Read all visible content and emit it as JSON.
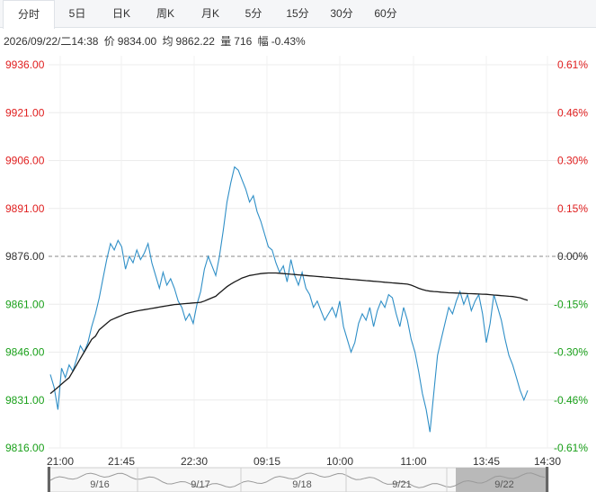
{
  "tabs": [
    {
      "label": "分时",
      "active": true
    },
    {
      "label": "5日"
    },
    {
      "label": "日K"
    },
    {
      "label": "周K"
    },
    {
      "label": "月K"
    },
    {
      "label": "5分"
    },
    {
      "label": "15分"
    },
    {
      "label": "30分"
    },
    {
      "label": "60分"
    }
  ],
  "info": {
    "datetime": "2026/09/22/二14:38",
    "price_label": "价",
    "price": "9834.00",
    "avg_label": "均",
    "avg": "9862.22",
    "vol_label": "量",
    "vol": "716",
    "chg_label": "幅",
    "chg": "-0.43%"
  },
  "chart_data": {
    "type": "line",
    "y_left_ticks": [
      "9936.00",
      "9921.00",
      "9906.00",
      "9891.00",
      "9876.00",
      "9861.00",
      "9846.00",
      "9831.00",
      "9816.00"
    ],
    "y_right_ticks": [
      "0.61%",
      "0.46%",
      "0.30%",
      "0.15%",
      "0.00%",
      "-0.15%",
      "-0.30%",
      "-0.46%",
      "-0.61%"
    ],
    "ylim": [
      9816,
      9936
    ],
    "reference_price": 9876,
    "x_ticks": [
      "21:00",
      "21:45",
      "22:30",
      "09:15",
      "10:00",
      "11:00",
      "13:45",
      "14:30"
    ],
    "navigator_labels": [
      "9/16",
      "9/17",
      "9/18",
      "9/21",
      "9/22"
    ],
    "colors": {
      "price": "#2f8fc7",
      "average": "#1a1a1a",
      "up": "#e02020",
      "down": "#1aa01a",
      "reference": "#888888"
    },
    "series": [
      {
        "key": "price",
        "values": [
          9839,
          9835,
          9828,
          9841,
          9838,
          9842,
          9840,
          9844,
          9848,
          9846,
          9849,
          9854,
          9858,
          9863,
          9869,
          9875,
          9880,
          9878,
          9881,
          9879,
          9872,
          9876,
          9874,
          9878,
          9875,
          9877,
          9880,
          9874,
          9870,
          9866,
          9871,
          9867,
          9869,
          9866,
          9862,
          9860,
          9856,
          9858,
          9855,
          9861,
          9865,
          9872,
          9876,
          9873,
          9870,
          9876,
          9884,
          9893,
          9899,
          9904,
          9903,
          9900,
          9897,
          9893,
          9895,
          9890,
          9887,
          9883,
          9879,
          9878,
          9874,
          9871,
          9873,
          9868,
          9875,
          9870,
          9867,
          9871,
          9866,
          9864,
          9860,
          9862,
          9859,
          9856,
          9858,
          9860,
          9857,
          9862,
          9854,
          9850,
          9846,
          9849,
          9855,
          9858,
          9856,
          9860,
          9854,
          9859,
          9862,
          9860,
          9864,
          9863,
          9858,
          9854,
          9860,
          9856,
          9850,
          9846,
          9840,
          9833,
          9828,
          9821,
          9833,
          9845,
          9850,
          9855,
          9860,
          9858,
          9862,
          9865,
          9861,
          9864,
          9859,
          9862,
          9864,
          9858,
          9849,
          9855,
          9864,
          9860,
          9856,
          9850,
          9845,
          9842,
          9838,
          9834,
          9831,
          9834
        ]
      },
      {
        "key": "average",
        "values": [
          9833,
          9834,
          9835,
          9836,
          9837,
          9838,
          9840,
          9842,
          9844,
          9846,
          9848,
          9850,
          9851,
          9853,
          9854,
          9855,
          9856,
          9856.5,
          9857,
          9857.5,
          9858,
          9858.3,
          9858.6,
          9858.9,
          9859.1,
          9859.3,
          9859.5,
          9859.7,
          9859.9,
          9860.1,
          9860.3,
          9860.5,
          9860.7,
          9860.9,
          9861,
          9861.1,
          9861.2,
          9861.3,
          9861.4,
          9861.5,
          9861.6,
          9862,
          9862.5,
          9863,
          9863.5,
          9864.5,
          9865.5,
          9866.5,
          9867.3,
          9868,
          9868.6,
          9869.2,
          9869.6,
          9870,
          9870.2,
          9870.4,
          9870.6,
          9870.7,
          9870.8,
          9870.8,
          9870.8,
          9870.7,
          9870.6,
          9870.5,
          9870.4,
          9870.3,
          9870.2,
          9870.1,
          9870,
          9869.9,
          9869.8,
          9869.7,
          9869.6,
          9869.5,
          9869.4,
          9869.3,
          9869.2,
          9869.1,
          9869,
          9868.9,
          9868.8,
          9868.7,
          9868.6,
          9868.5,
          9868.4,
          9868.3,
          9868.2,
          9868.1,
          9868,
          9867.9,
          9867.8,
          9867.7,
          9867.6,
          9867.5,
          9867.4,
          9867.3,
          9867,
          9866.5,
          9866,
          9865.6,
          9865.3,
          9865.1,
          9865,
          9864.9,
          9864.8,
          9864.7,
          9864.6,
          9864.55,
          9864.5,
          9864.45,
          9864.4,
          9864.35,
          9864.3,
          9864.25,
          9864.2,
          9864.15,
          9864.1,
          9864,
          9863.9,
          9863.8,
          9863.7,
          9863.6,
          9863.5,
          9863.4,
          9863.2,
          9863,
          9862.6,
          9862.22
        ]
      }
    ]
  }
}
